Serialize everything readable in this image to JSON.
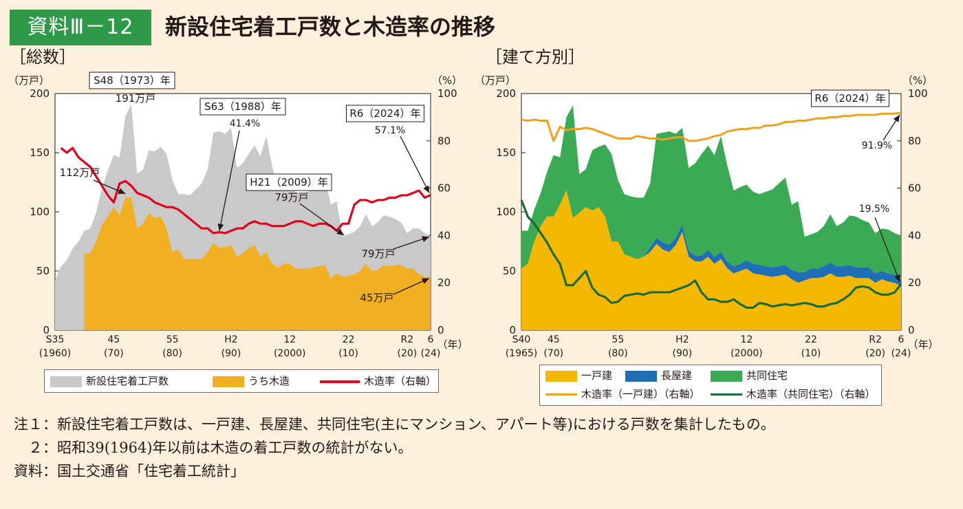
{
  "header": {
    "badge": "資料Ⅲ－12",
    "title": "新設住宅着工戸数と木造率の推移"
  },
  "colors": {
    "total": "#c9c9c9",
    "wood": "#f0b021",
    "rate": "#e3001b",
    "detached": "#f5b800",
    "row_house": "#1e6fb6",
    "apartment": "#3aaa55",
    "rate_detached": "#f0a020",
    "rate_apartment": "#1a6b35",
    "badge": "#2e9a48",
    "bg": "#fdf1dd",
    "plot_bg": "#ffffff"
  },
  "chart_data": [
    {
      "type": "area",
      "section_title": "［総数］",
      "ylabel_left": "（万戸）",
      "ylabel_right": "（%）",
      "xlabel": "（年）",
      "ylim": [
        0,
        200
      ],
      "y2lim": [
        0,
        100
      ],
      "yticks": [
        0,
        50,
        100,
        150,
        200
      ],
      "y2ticks": [
        0,
        20,
        40,
        60,
        80,
        100
      ],
      "xlim": [
        1960,
        2024
      ],
      "xticks": [
        {
          "x": 1960,
          "l1": "S35",
          "l2": "(1960)"
        },
        {
          "x": 1970,
          "l1": "45",
          "l2": "(70)"
        },
        {
          "x": 1980,
          "l1": "55",
          "l2": "(80)"
        },
        {
          "x": 1990,
          "l1": "H2",
          "l2": "(90)"
        },
        {
          "x": 2000,
          "l1": "12",
          "l2": "(2000)"
        },
        {
          "x": 2010,
          "l1": "22",
          "l2": "(10)"
        },
        {
          "x": 2020,
          "l1": "R2",
          "l2": "(20)"
        },
        {
          "x": 2024,
          "l1": "6",
          "l2": "(24)"
        }
      ],
      "x": [
        1960,
        1961,
        1962,
        1963,
        1964,
        1965,
        1966,
        1967,
        1968,
        1969,
        1970,
        1971,
        1972,
        1973,
        1974,
        1975,
        1976,
        1977,
        1978,
        1979,
        1980,
        1981,
        1982,
        1983,
        1984,
        1985,
        1986,
        1987,
        1988,
        1989,
        1990,
        1991,
        1992,
        1993,
        1994,
        1995,
        1996,
        1997,
        1998,
        1999,
        2000,
        2001,
        2002,
        2003,
        2004,
        2005,
        2006,
        2007,
        2008,
        2009,
        2010,
        2011,
        2012,
        2013,
        2014,
        2015,
        2016,
        2017,
        2018,
        2019,
        2020,
        2021,
        2022,
        2023,
        2024
      ],
      "series": [
        {
          "name": "新設住宅着工戸数",
          "axis": "left",
          "values": [
            42,
            54,
            59,
            69,
            75,
            84,
            86,
            99,
            120,
            135,
            148,
            146,
            181,
            191,
            132,
            136,
            152,
            151,
            155,
            149,
            127,
            115,
            115,
            114,
            119,
            124,
            136,
            167,
            168,
            166,
            171,
            137,
            141,
            149,
            156,
            147,
            164,
            139,
            118,
            121,
            123,
            117,
            115,
            117,
            119,
            124,
            129,
            106,
            109,
            79,
            81,
            83,
            88,
            98,
            88,
            91,
            97,
            96,
            94,
            91,
            82,
            86,
            86,
            82,
            79
          ]
        },
        {
          "name": "うち木造",
          "axis": "left",
          "start": 1965,
          "values": [
            null,
            null,
            null,
            null,
            null,
            65,
            65,
            75,
            89,
            96,
            104,
            97,
            112,
            112,
            86,
            90,
            99,
            95,
            96,
            86,
            66,
            68,
            60,
            60,
            60,
            60,
            66,
            74,
            70,
            70,
            72,
            62,
            65,
            69,
            72,
            62,
            66,
            56,
            53,
            56,
            56,
            52,
            52,
            52,
            53,
            54,
            55,
            44,
            48,
            45,
            46,
            47,
            50,
            56,
            50,
            51,
            55,
            54,
            55,
            55,
            52,
            52,
            47,
            45,
            45
          ]
        },
        {
          "name": "木造率（右軸）",
          "axis": "right",
          "start": 1961,
          "values": [
            null,
            77,
            75,
            77,
            73,
            71,
            69,
            65,
            61,
            57,
            54,
            62,
            63,
            61,
            58,
            57,
            56,
            54,
            53,
            52,
            52,
            51,
            49,
            47,
            45,
            43,
            43,
            41,
            41.4,
            41,
            42,
            43,
            43,
            45,
            46,
            45,
            45,
            44,
            44,
            44,
            45,
            46,
            46,
            45,
            44,
            45,
            45,
            44,
            42,
            45,
            45,
            53,
            55,
            55,
            54,
            55,
            55,
            56,
            56,
            57,
            57,
            58,
            59,
            56,
            57.1
          ]
        }
      ],
      "annotations": [
        {
          "text": "S48（1973）年",
          "boxed": true
        },
        {
          "text": "191万戸"
        },
        {
          "text": "S63（1988）年",
          "boxed": true
        },
        {
          "text": "41.4%"
        },
        {
          "text": "R6（2024）年",
          "boxed": true
        },
        {
          "text": "57.1%"
        },
        {
          "text": "112万戸"
        },
        {
          "text": "H21（2009）年",
          "boxed": true
        },
        {
          "text": "79万戸"
        },
        {
          "text": "79万戸"
        },
        {
          "text": "45万戸"
        }
      ],
      "legend": {
        "items": [
          "新設住宅着工戸数",
          "うち木造",
          "木造率（右軸）"
        ]
      }
    },
    {
      "type": "area",
      "section_title": "［建て方別］",
      "ylabel_left": "（万戸）",
      "ylabel_right": "（%）",
      "xlabel": "（年）",
      "ylim": [
        0,
        200
      ],
      "y2lim": [
        0,
        100
      ],
      "yticks": [
        0,
        50,
        100,
        150,
        200
      ],
      "y2ticks": [
        0,
        20,
        40,
        60,
        80,
        100
      ],
      "xlim": [
        1965,
        2024
      ],
      "xticks": [
        {
          "x": 1965,
          "l1": "S40",
          "l2": "(1965)"
        },
        {
          "x": 1970,
          "l1": "45",
          "l2": "(70)"
        },
        {
          "x": 1980,
          "l1": "55",
          "l2": "(80)"
        },
        {
          "x": 1990,
          "l1": "H2",
          "l2": "(90)"
        },
        {
          "x": 2000,
          "l1": "12",
          "l2": "(2000)"
        },
        {
          "x": 2010,
          "l1": "22",
          "l2": "(10)"
        },
        {
          "x": 2020,
          "l1": "R2",
          "l2": "(20)"
        },
        {
          "x": 2024,
          "l1": "6",
          "l2": "(24)"
        }
      ],
      "x": [
        1965,
        1966,
        1967,
        1968,
        1969,
        1970,
        1971,
        1972,
        1973,
        1974,
        1975,
        1976,
        1977,
        1978,
        1979,
        1980,
        1981,
        1982,
        1983,
        1984,
        1985,
        1986,
        1987,
        1988,
        1989,
        1990,
        1991,
        1992,
        1993,
        1994,
        1995,
        1996,
        1997,
        1998,
        1999,
        2000,
        2001,
        2002,
        2003,
        2004,
        2005,
        2006,
        2007,
        2008,
        2009,
        2010,
        2011,
        2012,
        2013,
        2014,
        2015,
        2016,
        2017,
        2018,
        2019,
        2020,
        2021,
        2022,
        2023,
        2024
      ],
      "series": [
        {
          "name": "一戸建",
          "axis": "left",
          "values": [
            52,
            56,
            75,
            88,
            96,
            96,
            106,
            118,
            95,
            99,
            104,
            101,
            104,
            96,
            75,
            75,
            64,
            62,
            60,
            62,
            66,
            73,
            68,
            66,
            72,
            83,
            62,
            58,
            58,
            62,
            56,
            60,
            52,
            48,
            50,
            52,
            48,
            47,
            46,
            45,
            46,
            47,
            43,
            40,
            42,
            44,
            44,
            45,
            48,
            45,
            45,
            46,
            44,
            44,
            44,
            40,
            43,
            41,
            40,
            37
          ]
        },
        {
          "name": "長屋建",
          "axis": "left",
          "values": [
            0,
            0,
            0,
            0,
            0,
            0,
            0,
            0,
            0,
            0,
            0,
            0,
            0,
            0,
            0,
            0,
            0,
            0,
            0,
            0,
            4,
            5,
            6,
            6,
            6,
            6,
            5,
            5,
            5,
            6,
            6,
            6,
            6,
            6,
            6,
            7,
            8,
            8,
            8,
            8,
            8,
            8,
            8,
            9,
            7,
            8,
            8,
            9,
            9,
            9,
            9,
            9,
            9,
            9,
            9,
            8,
            7,
            7,
            7,
            5
          ]
        },
        {
          "name": "共同住宅",
          "axis": "left",
          "values": [
            32,
            28,
            27,
            28,
            38,
            52,
            40,
            62,
            95,
            33,
            32,
            51,
            51,
            61,
            74,
            52,
            51,
            51,
            52,
            50,
            54,
            88,
            93,
            96,
            88,
            82,
            70,
            78,
            86,
            88,
            86,
            98,
            81,
            64,
            65,
            64,
            61,
            60,
            63,
            66,
            70,
            74,
            55,
            60,
            30,
            29,
            31,
            34,
            41,
            34,
            37,
            42,
            43,
            40,
            38,
            34,
            36,
            37,
            35,
            38
          ]
        },
        {
          "name": "木造率（一戸建）（右軸）",
          "axis": "right",
          "values": [
            89,
            88.5,
            89,
            88.5,
            88.5,
            80,
            86,
            84.5,
            85,
            85,
            85.5,
            85,
            84,
            83,
            82,
            81,
            81,
            81,
            82,
            81.5,
            81,
            81,
            80.5,
            81,
            81.5,
            81.5,
            80,
            80,
            80.5,
            81,
            82,
            82.5,
            84,
            84.5,
            85,
            85,
            85.5,
            85.5,
            86.5,
            86.5,
            87,
            88,
            88,
            88.5,
            88.5,
            89,
            89.5,
            89.5,
            90,
            90,
            90.5,
            90.5,
            91,
            91,
            91,
            91,
            91.5,
            91.5,
            91.5,
            91.9
          ]
        },
        {
          "name": "木造率（共同住宅）（右軸）",
          "axis": "right",
          "values": [
            55,
            48,
            45,
            41,
            37,
            32,
            28,
            19,
            19,
            22,
            25,
            18,
            15,
            14,
            11.5,
            12,
            14.5,
            15,
            15.5,
            15,
            16,
            16,
            16,
            16,
            17,
            18,
            19,
            21,
            16,
            13,
            13,
            12,
            12,
            13,
            11,
            9.5,
            9.5,
            11.5,
            11,
            10,
            10.5,
            11,
            10.5,
            11,
            11.5,
            11,
            10,
            10,
            11,
            11.5,
            13,
            15,
            18,
            18.5,
            18,
            16,
            15,
            15,
            16,
            19.5
          ]
        }
      ],
      "annotations": [
        {
          "text": "R6（2024）年",
          "boxed": true
        },
        {
          "text": "91.9%"
        },
        {
          "text": "19.5%"
        }
      ],
      "legend": {
        "items": [
          "一戸建",
          "長屋建",
          "共同住宅",
          "木造率（一戸建）（右軸）",
          "木造率（共同住宅）（右軸）"
        ]
      }
    }
  ],
  "notes": [
    "注１：新設住宅着工戸数は、一戸建、長屋建、共同住宅(主にマンション、アパート等)における戸数を集計したもの。",
    "　２：昭和39(1964)年以前は木造の着工戸数の統計がない。",
    "資料：国土交通省「住宅着工統計」"
  ]
}
